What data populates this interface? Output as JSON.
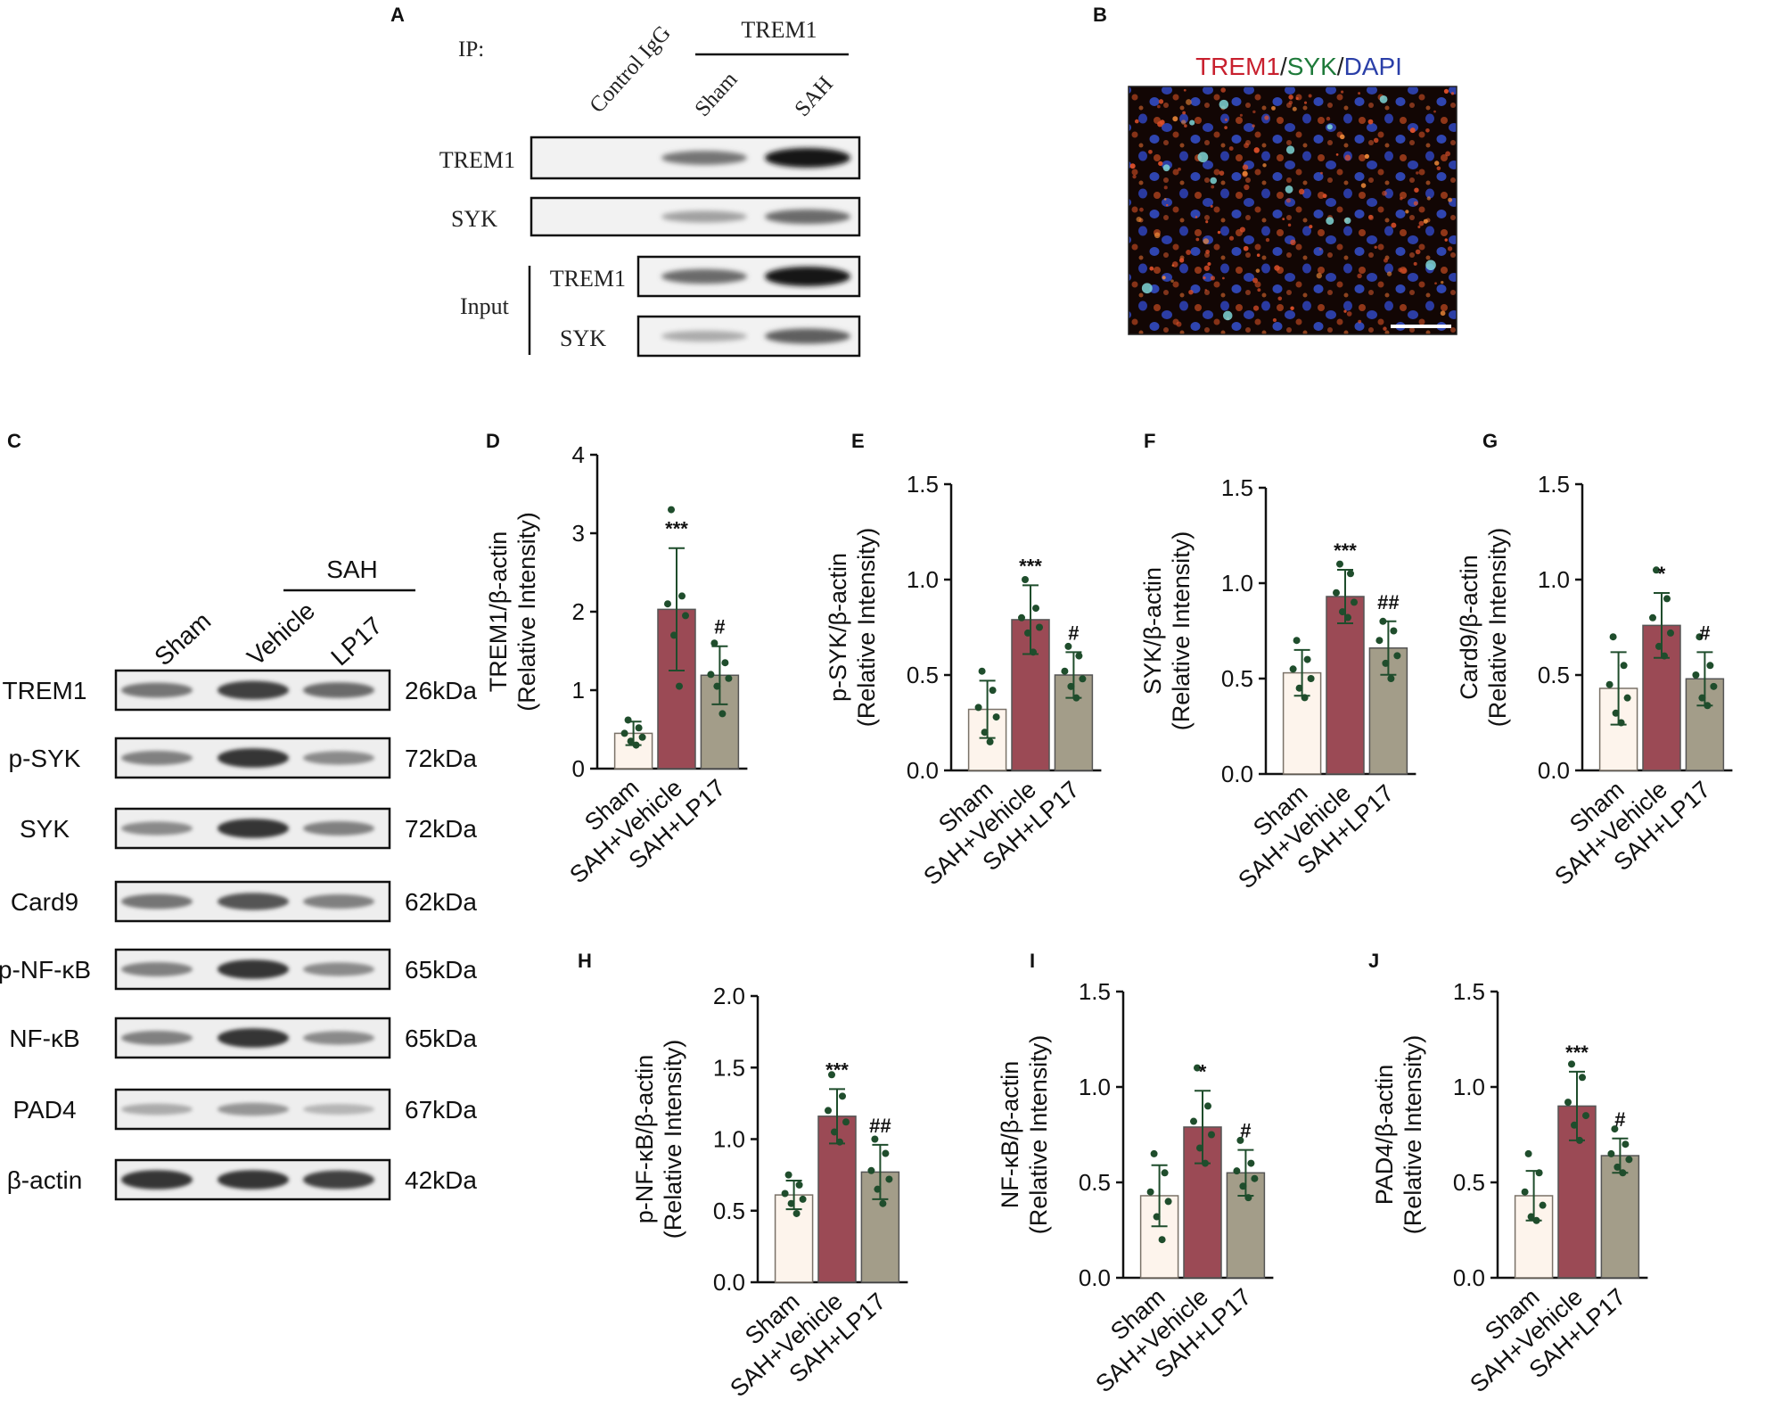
{
  "panels": {
    "A": "A",
    "B": "B",
    "C": "C",
    "D": "D",
    "E": "E",
    "F": "F",
    "G": "G",
    "H": "H",
    "I": "I",
    "J": "J"
  },
  "panel_a": {
    "ip_label": "IP:",
    "lanes": [
      "Control IgG",
      "Sham",
      "SAH"
    ],
    "group_label": "TREM1",
    "ip_blots": [
      {
        "label": "TREM1",
        "intensity": [
          0,
          0.55,
          1.0
        ]
      },
      {
        "label": "SYK",
        "intensity": [
          0,
          0.35,
          0.6
        ]
      }
    ],
    "input_label": "Input",
    "input_blots": [
      {
        "label": "TREM1",
        "intensity": [
          0.6,
          1.0
        ]
      },
      {
        "label": "SYK",
        "intensity": [
          0.3,
          0.65
        ]
      }
    ]
  },
  "panel_b": {
    "stain_red": "TREM1",
    "slash1": "/",
    "stain_green": "SYK",
    "slash2": "/",
    "stain_blue": "DAPI",
    "colors": {
      "red": "#c8202e",
      "green": "#1e7a3a",
      "blue": "#2a3fa8"
    }
  },
  "panel_c": {
    "group_label": "SAH",
    "lanes": [
      "Sham",
      "Vehicle",
      "LP17"
    ],
    "blots": [
      {
        "protein": "TREM1",
        "size": "26kDa",
        "intensity": [
          0.55,
          0.8,
          0.6
        ]
      },
      {
        "protein": "p-SYK",
        "size": "72kDa",
        "intensity": [
          0.5,
          0.85,
          0.45
        ]
      },
      {
        "protein": "SYK",
        "size": "72kDa",
        "intensity": [
          0.45,
          0.85,
          0.5
        ]
      },
      {
        "protein": "Card9",
        "size": "62kDa",
        "intensity": [
          0.55,
          0.7,
          0.5
        ]
      },
      {
        "protein": "p-NF-κB",
        "size": "65kDa",
        "intensity": [
          0.5,
          0.85,
          0.45
        ]
      },
      {
        "protein": "NF-κB",
        "size": "65kDa",
        "intensity": [
          0.5,
          0.85,
          0.45
        ]
      },
      {
        "protein": "PAD4",
        "size": "67kDa",
        "intensity": [
          0.3,
          0.4,
          0.25
        ]
      },
      {
        "protein": "β-actin",
        "size": "42kDa",
        "intensity": [
          0.85,
          0.85,
          0.8
        ]
      }
    ]
  },
  "chart_data": [
    {
      "panel": "D",
      "type": "bar",
      "categories": [
        "Sham",
        "SAH+Vehicle",
        "SAH+LP17"
      ],
      "ylabel": "TREM1/β-actin",
      "ylabel2": "(Relative Intensity)",
      "ylim": [
        0,
        4
      ],
      "yticks": [
        "0",
        "1",
        "2",
        "3",
        "4"
      ],
      "values": [
        0.45,
        2.03,
        1.19
      ],
      "sd": [
        0.15,
        0.78,
        0.37
      ],
      "points": [
        [
          0.62,
          0.52,
          0.45,
          0.4,
          0.35,
          0.3
        ],
        [
          3.3,
          2.2,
          2.1,
          1.95,
          1.7,
          1.05
        ],
        [
          1.6,
          1.35,
          1.2,
          1.15,
          1.05,
          0.7
        ]
      ],
      "sig": [
        "",
        "***",
        "#"
      ]
    },
    {
      "panel": "E",
      "type": "bar",
      "categories": [
        "Sham",
        "SAH+Vehicle",
        "SAH+LP17"
      ],
      "ylabel": "p-SYK/β-actin",
      "ylabel2": "(Relative Intensity)",
      "ylim": [
        0,
        1.5
      ],
      "yticks": [
        "0.0",
        "0.5",
        "1.0",
        "1.5"
      ],
      "values": [
        0.32,
        0.79,
        0.5
      ],
      "sd": [
        0.15,
        0.18,
        0.12
      ],
      "points": [
        [
          0.52,
          0.42,
          0.33,
          0.28,
          0.2,
          0.15
        ],
        [
          1.0,
          0.85,
          0.8,
          0.75,
          0.72,
          0.62
        ],
        [
          0.65,
          0.6,
          0.52,
          0.48,
          0.44,
          0.38
        ]
      ],
      "sig": [
        "",
        "***",
        "#"
      ]
    },
    {
      "panel": "F",
      "type": "bar",
      "categories": [
        "Sham",
        "SAH+Vehicle",
        "SAH+LP17"
      ],
      "ylabel": "SYK/β-actin",
      "ylabel2": "(Relative Intensity)",
      "ylim": [
        0,
        1.5
      ],
      "yticks": [
        "0.0",
        "0.5",
        "1.0",
        "1.5"
      ],
      "values": [
        0.53,
        0.93,
        0.66
      ],
      "sd": [
        0.12,
        0.14,
        0.14
      ],
      "points": [
        [
          0.7,
          0.6,
          0.55,
          0.5,
          0.45,
          0.4
        ],
        [
          1.1,
          1.05,
          0.95,
          0.9,
          0.85,
          0.82
        ],
        [
          0.8,
          0.75,
          0.7,
          0.62,
          0.58,
          0.5
        ]
      ],
      "sig": [
        "",
        "***",
        "##"
      ]
    },
    {
      "panel": "G",
      "type": "bar",
      "categories": [
        "Sham",
        "SAH+Vehicle",
        "SAH+LP17"
      ],
      "ylabel": "Card9/β-actin",
      "ylabel2": "(Relative Intensity)",
      "ylim": [
        0,
        1.5
      ],
      "yticks": [
        "0.0",
        "0.5",
        "1.0",
        "1.5"
      ],
      "values": [
        0.43,
        0.76,
        0.48
      ],
      "sd": [
        0.19,
        0.17,
        0.14
      ],
      "points": [
        [
          0.7,
          0.55,
          0.45,
          0.38,
          0.3,
          0.25
        ],
        [
          1.05,
          0.9,
          0.8,
          0.72,
          0.65,
          0.6
        ],
        [
          0.7,
          0.55,
          0.5,
          0.44,
          0.38,
          0.34
        ]
      ],
      "sig": [
        "",
        "*",
        "#"
      ]
    },
    {
      "panel": "H",
      "type": "bar",
      "categories": [
        "Sham",
        "SAH+Vehicle",
        "SAH+LP17"
      ],
      "ylabel": "p-NF-κB/β-actin",
      "ylabel2": "(Relative Intensity)",
      "ylim": [
        0,
        2.0
      ],
      "yticks": [
        "0.0",
        "0.5",
        "1.0",
        "1.5",
        "2.0"
      ],
      "values": [
        0.61,
        1.16,
        0.77
      ],
      "sd": [
        0.1,
        0.19,
        0.19
      ],
      "points": [
        [
          0.75,
          0.68,
          0.62,
          0.58,
          0.55,
          0.48
        ],
        [
          1.45,
          1.3,
          1.2,
          1.12,
          1.05,
          0.98
        ],
        [
          1.0,
          0.9,
          0.78,
          0.72,
          0.65,
          0.55
        ]
      ],
      "sig": [
        "",
        "***",
        "##"
      ]
    },
    {
      "panel": "I",
      "type": "bar",
      "categories": [
        "Sham",
        "SAH+Vehicle",
        "SAH+LP17"
      ],
      "ylabel": "NF-κB/β-actin",
      "ylabel2": "(Relative Intensity)",
      "ylim": [
        0,
        1.5
      ],
      "yticks": [
        "0.0",
        "0.5",
        "1.0",
        "1.5"
      ],
      "values": [
        0.43,
        0.79,
        0.55
      ],
      "sd": [
        0.16,
        0.19,
        0.12
      ],
      "points": [
        [
          0.65,
          0.55,
          0.45,
          0.4,
          0.32,
          0.2
        ],
        [
          1.1,
          0.9,
          0.82,
          0.75,
          0.68,
          0.6
        ],
        [
          0.72,
          0.6,
          0.56,
          0.52,
          0.48,
          0.42
        ]
      ],
      "sig": [
        "",
        "*",
        "#"
      ]
    },
    {
      "panel": "J",
      "type": "bar",
      "categories": [
        "Sham",
        "SAH+Vehicle",
        "SAH+LP17"
      ],
      "ylabel": "PAD4/β-actin",
      "ylabel2": "(Relative Intensity)",
      "ylim": [
        0,
        1.5
      ],
      "yticks": [
        "0.0",
        "0.5",
        "1.0",
        "1.5"
      ],
      "values": [
        0.43,
        0.9,
        0.64
      ],
      "sd": [
        0.13,
        0.18,
        0.09
      ],
      "points": [
        [
          0.65,
          0.55,
          0.45,
          0.38,
          0.32,
          0.3
        ],
        [
          1.12,
          1.05,
          0.92,
          0.85,
          0.8,
          0.72
        ],
        [
          0.78,
          0.7,
          0.65,
          0.62,
          0.58,
          0.55
        ]
      ],
      "sig": [
        "",
        "***",
        "#"
      ]
    }
  ],
  "colors": {
    "sham_fill": "#fdf4ec",
    "vehicle_fill": "#9b4a55",
    "lp17_fill": "#a39d89",
    "dot": "#1f4d2c"
  }
}
